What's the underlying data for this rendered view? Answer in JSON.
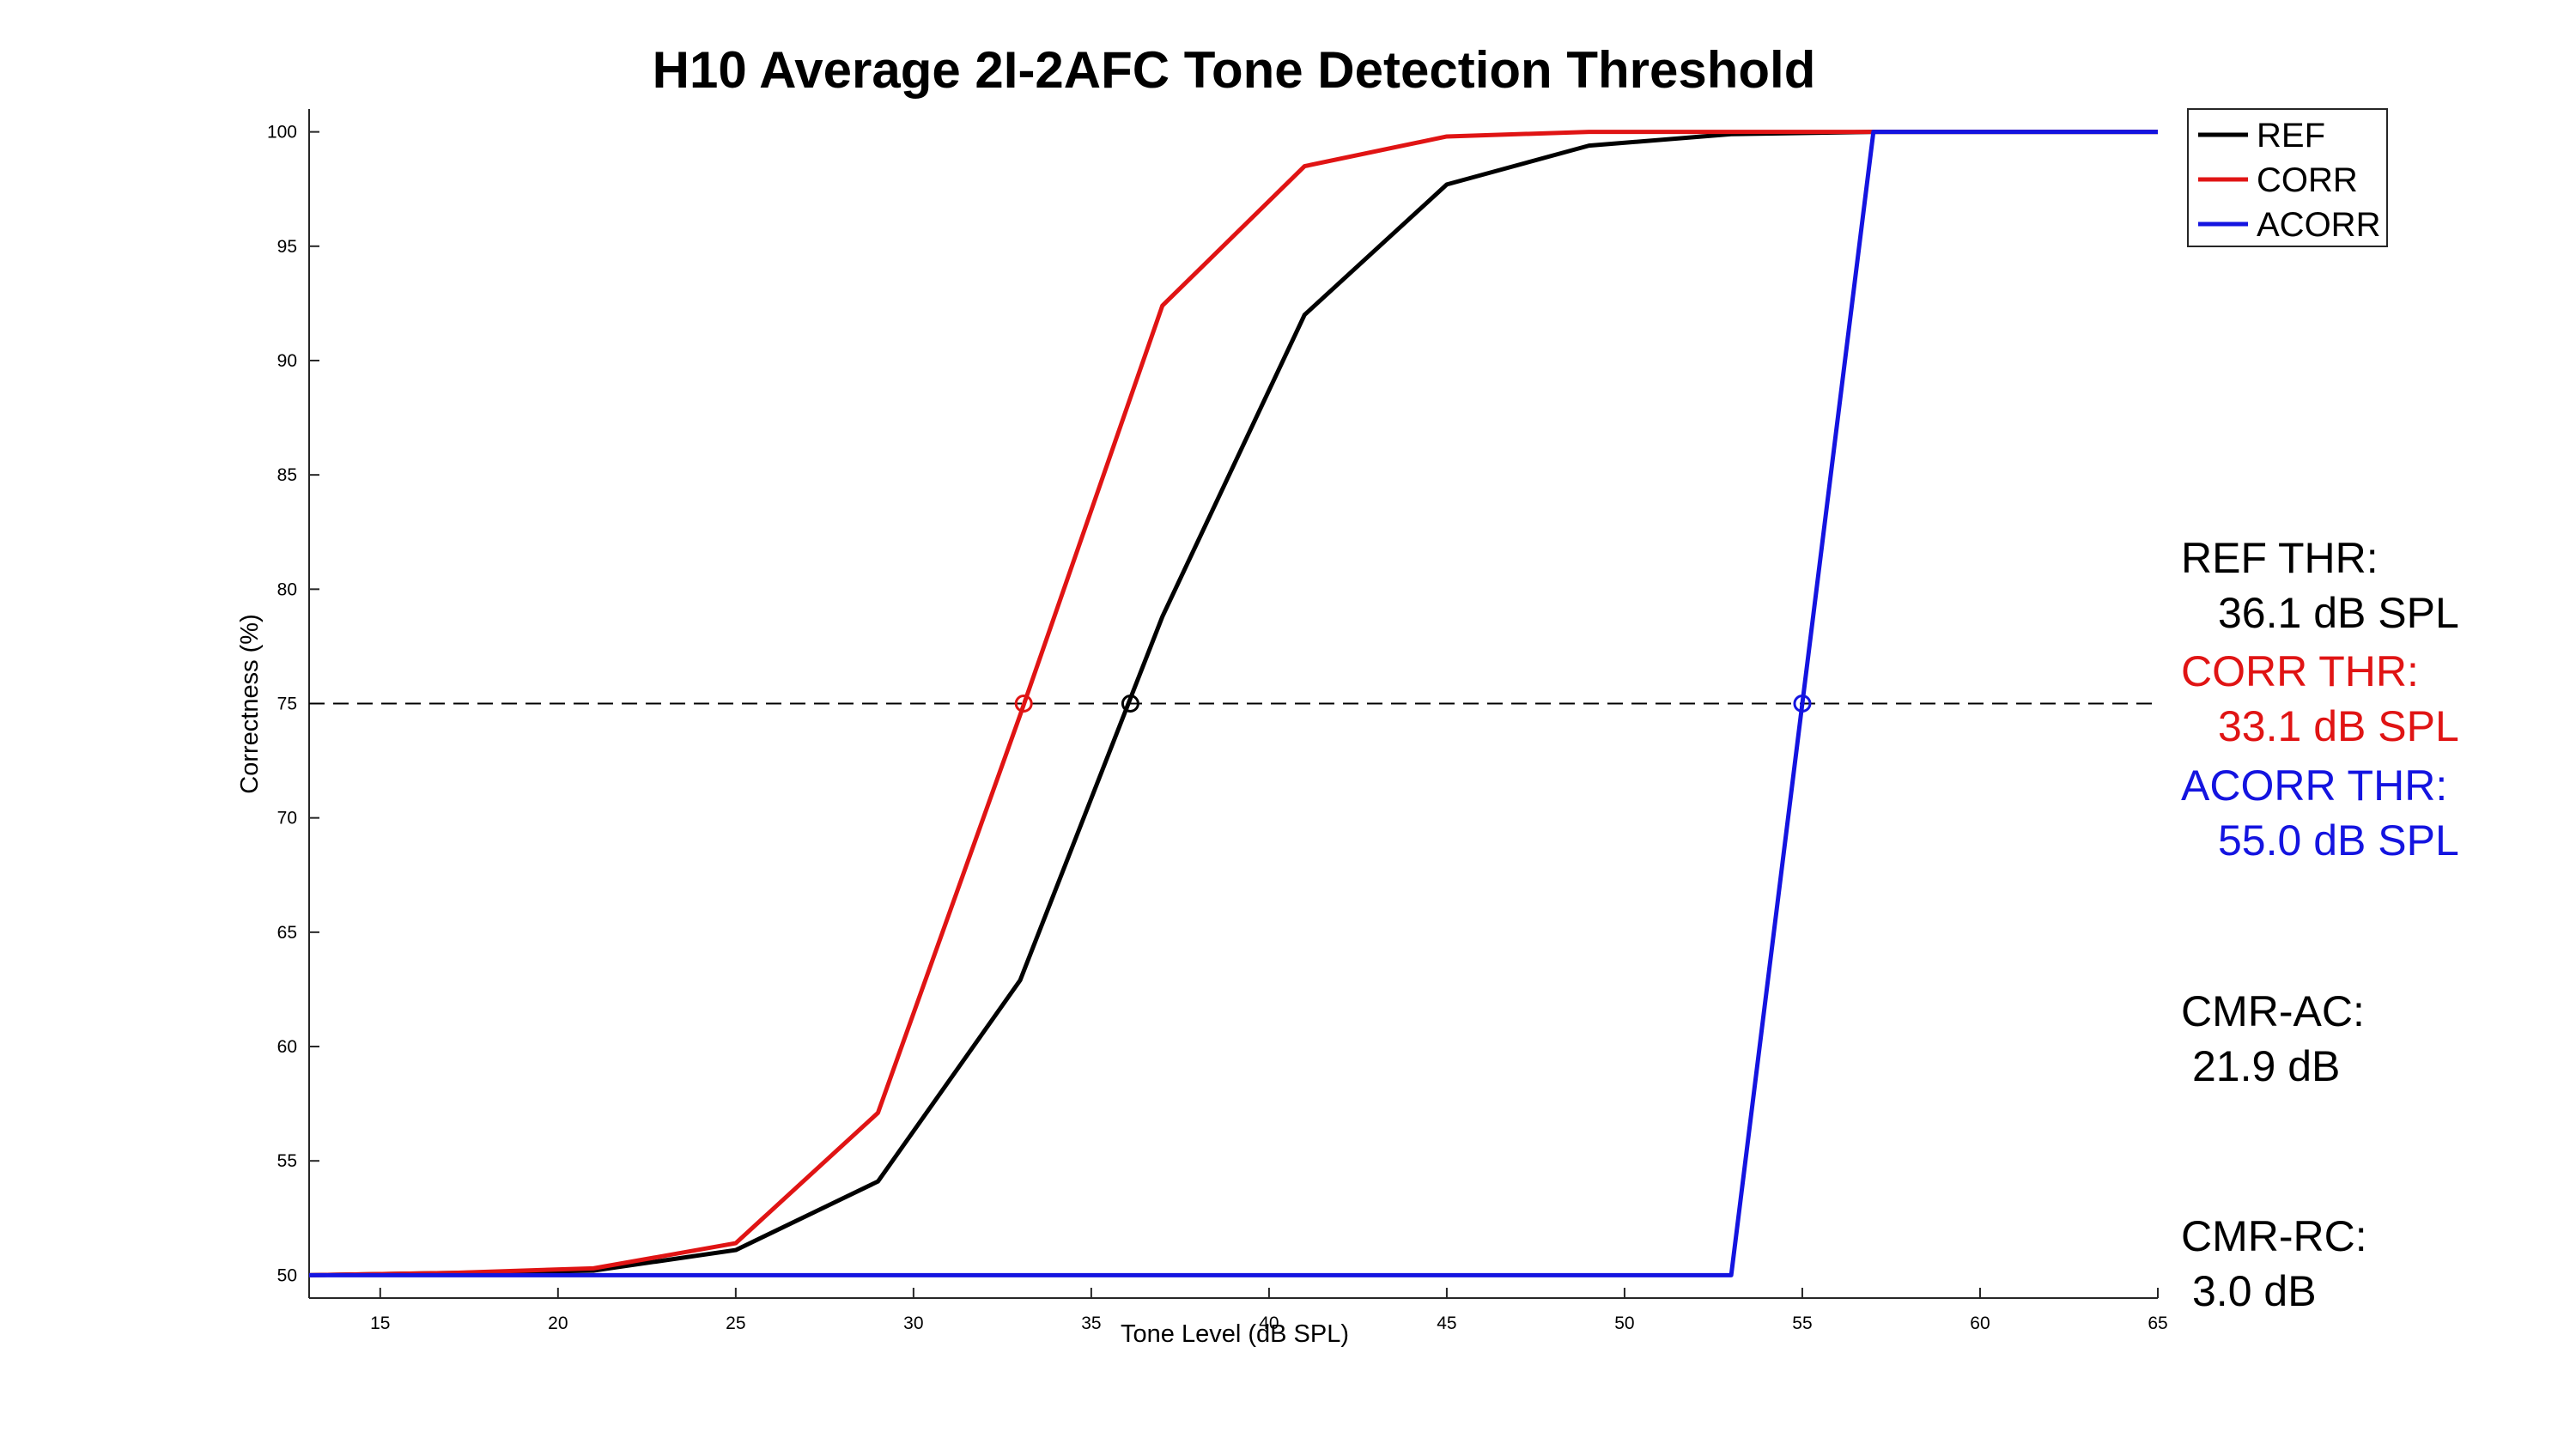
{
  "chart_data": {
    "type": "line",
    "title": "H10 Average 2I-2AFC Tone Detection Threshold",
    "xlabel": "Tone Level (dB SPL)",
    "ylabel": "Correctness (%)",
    "xlim": [
      13,
      65
    ],
    "ylim": [
      49,
      101
    ],
    "xticks": [
      15,
      20,
      25,
      30,
      35,
      40,
      45,
      50,
      55,
      60,
      65
    ],
    "yticks": [
      50,
      55,
      60,
      65,
      70,
      75,
      80,
      85,
      90,
      95,
      100
    ],
    "grid": false,
    "legend_position": "top-right",
    "reference_line": {
      "y": 75,
      "style": "dashed",
      "color": "#000000"
    },
    "series": [
      {
        "name": "REF",
        "color": "#000000",
        "x": [
          13,
          17,
          21,
          25,
          29,
          33,
          37,
          41,
          45,
          49,
          53,
          57,
          65
        ],
        "y": [
          50,
          50.1,
          50.2,
          51.1,
          54.1,
          62.9,
          78.8,
          92.0,
          97.7,
          99.4,
          99.9,
          100,
          100
        ]
      },
      {
        "name": "CORR",
        "color": "#e01414",
        "x": [
          13,
          17,
          21,
          25,
          29,
          33,
          37,
          41,
          45,
          49,
          53,
          57,
          65
        ],
        "y": [
          50,
          50.1,
          50.3,
          51.4,
          57.1,
          74.5,
          92.4,
          98.5,
          99.8,
          100,
          100,
          100,
          100
        ]
      },
      {
        "name": "ACORR",
        "color": "#1414e0",
        "x": [
          13,
          53,
          57,
          65
        ],
        "y": [
          50,
          50,
          100,
          100
        ]
      }
    ],
    "threshold_markers": [
      {
        "series": "REF",
        "x": 36.1,
        "y": 75,
        "color": "#000000"
      },
      {
        "series": "CORR",
        "x": 33.1,
        "y": 75,
        "color": "#e01414"
      },
      {
        "series": "ACORR",
        "x": 55.0,
        "y": 75,
        "color": "#1414e0"
      }
    ]
  },
  "annotations": {
    "ref_thr_label": "REF THR:",
    "ref_thr_value": "36.1 dB SPL",
    "corr_thr_label": "CORR THR:",
    "corr_thr_value": "33.1 dB SPL",
    "acorr_thr_label": "ACORR THR:",
    "acorr_thr_value": "55.0 dB SPL",
    "cmr_ac_label": "CMR-AC:",
    "cmr_ac_value": "21.9 dB",
    "cmr_rc_label": "CMR-RC:",
    "cmr_rc_value": "3.0 dB"
  }
}
